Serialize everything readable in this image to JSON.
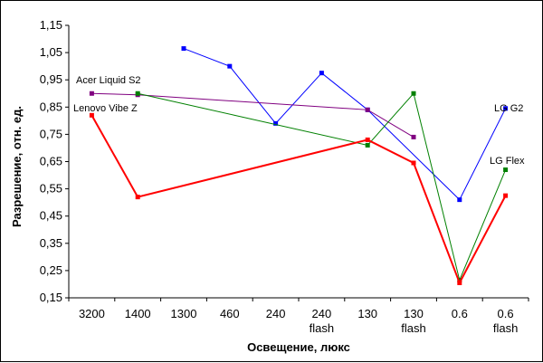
{
  "chart_data": {
    "type": "line",
    "xlabel": "Освещение, люкс",
    "ylabel": "Разрешение, отн. ед.",
    "categories": [
      [
        "3200"
      ],
      [
        "1400"
      ],
      [
        "1300"
      ],
      [
        "460"
      ],
      [
        "240"
      ],
      [
        "240",
        "flash"
      ],
      [
        "130"
      ],
      [
        "130",
        "flash"
      ],
      [
        "0.6"
      ],
      [
        "0.6",
        "flash"
      ]
    ],
    "yticks": [
      "0,15",
      "0,25",
      "0,35",
      "0,45",
      "0,55",
      "0,65",
      "0,75",
      "0,85",
      "0,95",
      "1,05",
      "1,15"
    ],
    "ylim": [
      0.15,
      1.15
    ],
    "grid": false,
    "series": [
      {
        "name": "LG G2",
        "color": "#0000ff",
        "width": 1,
        "points": [
          [
            2,
            1.065
          ],
          [
            3,
            1.0
          ],
          [
            4,
            0.79
          ],
          [
            5,
            0.975
          ],
          [
            6,
            0.84
          ],
          [
            8,
            0.51
          ],
          [
            9,
            0.845
          ]
        ]
      },
      {
        "name": "Acer Liquid S2",
        "color": "#800080",
        "width": 1,
        "points": [
          [
            0,
            0.9
          ],
          [
            1,
            0.895
          ],
          [
            6,
            0.84
          ],
          [
            7,
            0.74
          ]
        ]
      },
      {
        "name": "LG Flex",
        "color": "#008000",
        "width": 1,
        "points": [
          [
            1,
            0.9
          ],
          [
            6,
            0.71
          ],
          [
            7,
            0.9
          ],
          [
            8,
            0.215
          ],
          [
            9,
            0.62
          ]
        ]
      },
      {
        "name": "Lenovo Vibe Z",
        "color": "#ff0000",
        "width": 2,
        "points": [
          [
            0,
            0.82
          ],
          [
            1,
            0.52
          ],
          [
            6,
            0.73
          ],
          [
            7,
            0.645
          ],
          [
            8,
            0.205
          ],
          [
            9,
            0.525
          ]
        ]
      }
    ]
  }
}
